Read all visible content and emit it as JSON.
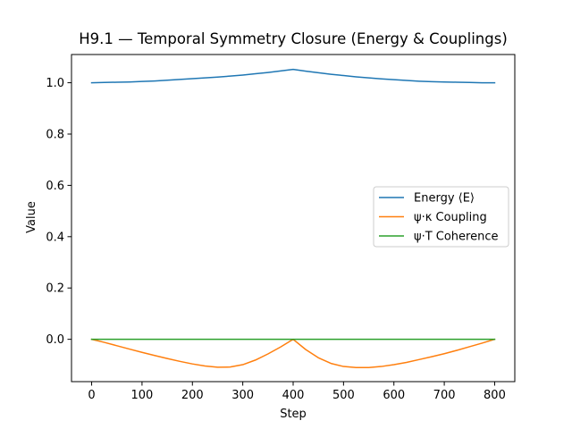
{
  "chart_data": {
    "type": "line",
    "title": "H9.1 — Temporal Symmetry Closure (Energy & Couplings)",
    "xlabel": "Step",
    "ylabel": "Value",
    "xlim": [
      -40,
      840
    ],
    "ylim": [
      -0.165,
      1.11
    ],
    "xticks": [
      0,
      100,
      200,
      300,
      400,
      500,
      600,
      700,
      800
    ],
    "yticks": [
      0.0,
      0.2,
      0.4,
      0.6,
      0.8,
      1.0
    ],
    "ytick_labels": [
      "0.0",
      "0.2",
      "0.4",
      "0.6",
      "0.8",
      "1.0"
    ],
    "grid": false,
    "legend_position": "center-right",
    "x": [
      0,
      25,
      50,
      75,
      100,
      125,
      150,
      175,
      200,
      225,
      250,
      275,
      300,
      325,
      350,
      375,
      400,
      425,
      450,
      475,
      500,
      525,
      550,
      575,
      600,
      625,
      650,
      675,
      700,
      725,
      750,
      775,
      800
    ],
    "series": [
      {
        "name": "Energy ⟨E⟩",
        "color": "#1f77b4",
        "values": [
          1.0,
          1.001,
          1.002,
          1.003,
          1.005,
          1.007,
          1.01,
          1.013,
          1.016,
          1.019,
          1.022,
          1.026,
          1.03,
          1.035,
          1.04,
          1.046,
          1.052,
          1.045,
          1.039,
          1.033,
          1.028,
          1.023,
          1.019,
          1.015,
          1.012,
          1.009,
          1.006,
          1.004,
          1.003,
          1.002,
          1.001,
          1.0,
          1.0
        ]
      },
      {
        "name": "ψ·κ Coupling",
        "color": "#ff7f0e",
        "values": [
          0.0,
          -0.012,
          -0.025,
          -0.038,
          -0.051,
          -0.063,
          -0.075,
          -0.086,
          -0.096,
          -0.104,
          -0.109,
          -0.108,
          -0.099,
          -0.081,
          -0.057,
          -0.03,
          0.0,
          -0.04,
          -0.072,
          -0.094,
          -0.106,
          -0.11,
          -0.11,
          -0.106,
          -0.099,
          -0.09,
          -0.079,
          -0.068,
          -0.056,
          -0.043,
          -0.029,
          -0.015,
          0.0
        ]
      },
      {
        "name": "ψ·T Coherence",
        "color": "#2ca02c",
        "values": [
          0.0,
          0.0,
          0.0,
          0.0,
          0.0,
          0.0,
          0.0,
          0.0,
          0.0,
          0.0,
          0.0,
          0.0,
          0.0,
          0.0,
          0.0,
          0.0,
          0.0,
          0.0,
          0.0,
          0.0,
          0.0,
          0.0,
          0.0,
          0.0,
          0.0,
          0.0,
          0.0,
          0.0,
          0.0,
          0.0,
          0.0,
          0.0,
          0.0
        ]
      }
    ]
  }
}
